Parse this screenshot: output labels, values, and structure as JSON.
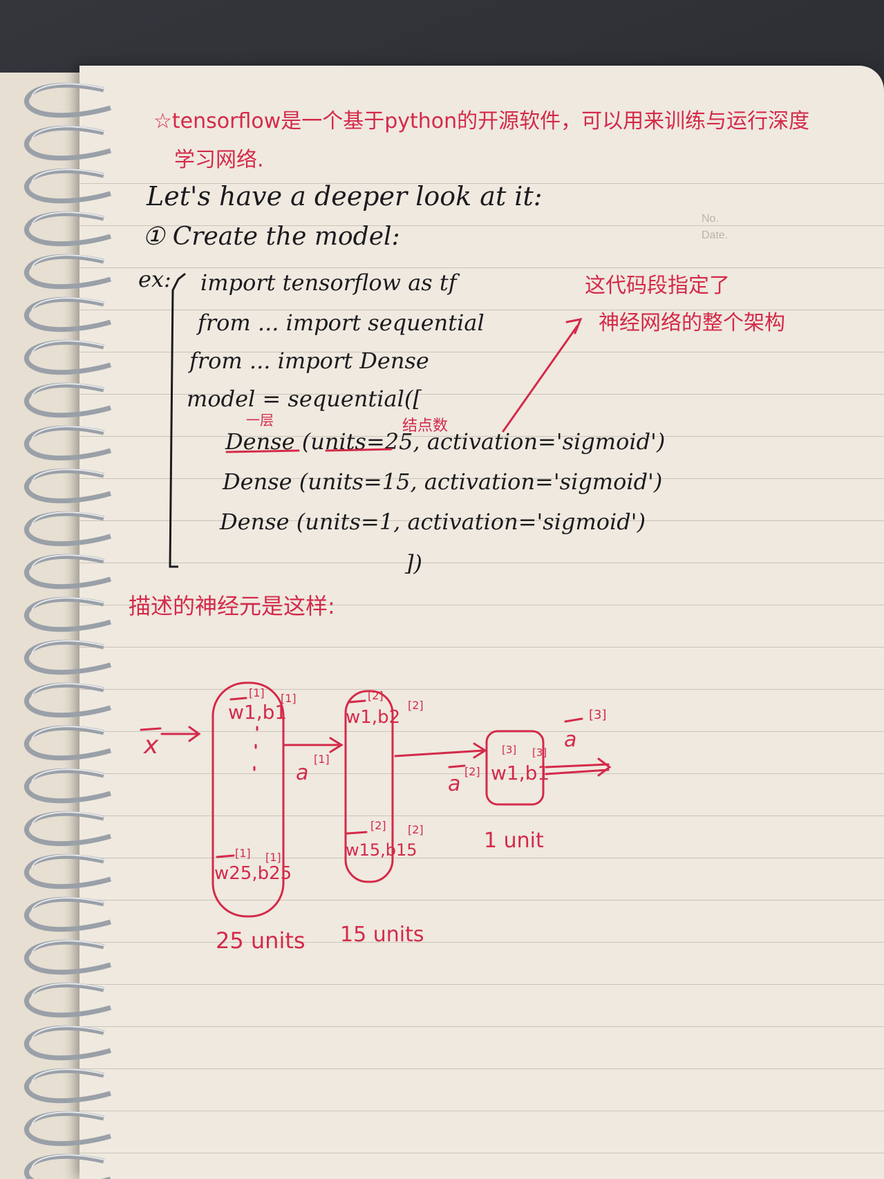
{
  "intro": {
    "line1": "☆tensorflow是一个基于python的开源软件，可以用来训练与运行深度",
    "line2": "学习网络."
  },
  "header_print": {
    "no": "No.",
    "date": "Date."
  },
  "heading": {
    "look": "Let's have a deeper look at it:",
    "step": "① Create the model:"
  },
  "code": {
    "prefix": "ex:",
    "lines": [
      "import tensorflow as tf",
      "from ... import sequential",
      "from ... import Dense",
      "model = sequential([",
      "Dense (units=25,   activation='sigmoid')",
      "Dense (units=15,   activation='sigmoid')",
      "Dense (units=1,   activation='sigmoid')",
      "])"
    ]
  },
  "annotations": {
    "layer": "一层",
    "node_count": "结点数",
    "side_note_1": "这代码段指定了",
    "side_note_2": "神经网络的整个架构",
    "describe": "描述的神经元是这样:"
  },
  "diagram": {
    "input": "x",
    "layer1": {
      "top": "w1,b1",
      "bottom": "w25,b25",
      "sup": "[1]",
      "units": "25 units"
    },
    "a1": "a",
    "a1_sup": "[1]",
    "layer2": {
      "top": "w1,b2",
      "bottom": "w15,b15",
      "sup": "[2]",
      "units": "15 units"
    },
    "a2": "a",
    "a2_sup": "[2]",
    "layer3": {
      "content": "w1,b1",
      "sup": "[3]",
      "units": "1 unit"
    },
    "a3": "a",
    "a3_sup": "[3]"
  },
  "colors": {
    "paper": "#efe9df",
    "ink": "#1b1b1f",
    "red_ink": "#d42a4a",
    "rule": "#c9c3b8",
    "ring": "#9aa0a8"
  }
}
